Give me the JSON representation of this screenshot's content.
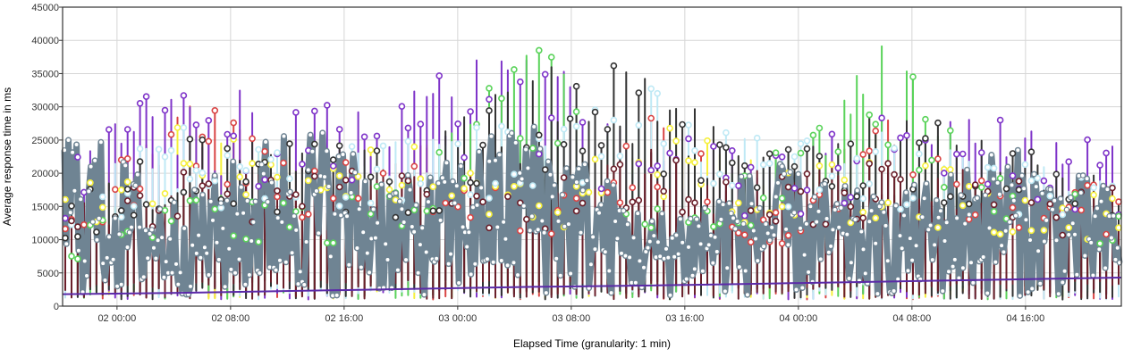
{
  "chart_data": {
    "type": "line",
    "title": "",
    "xlabel": "Elapsed Time (granularity: 1 min)",
    "ylabel": "Average response time in ms",
    "ylim": [
      0,
      45000
    ],
    "yticks": [
      0,
      5000,
      10000,
      15000,
      20000,
      25000,
      30000,
      35000,
      40000,
      45000
    ],
    "xlim": [
      "2020-12-01T20:10",
      "2020-12-04T22:45"
    ],
    "xticks": [
      "02 00:00",
      "02 08:00",
      "02 16:00",
      "03 00:00",
      "03 08:00",
      "03 16:00",
      "04 00:00",
      "04 08:00",
      "04 16:00"
    ],
    "grid": true,
    "legend": "none",
    "series": [
      {
        "color": "#6f8493",
        "values": [
          22000,
          9000,
          24000,
          13000,
          27000,
          8000,
          19000,
          12000,
          25000,
          16000
        ]
      },
      {
        "color": "#d94444",
        "values": [
          15000,
          33000,
          21000,
          26000,
          17000,
          30000,
          14000,
          29000,
          20000,
          18000
        ]
      },
      {
        "color": "#f6f03c",
        "values": [
          19000,
          28000,
          22000,
          25000,
          18000,
          29000,
          21000,
          23000,
          19000,
          17000
        ]
      },
      {
        "color": "#7f34c9",
        "values": [
          21000,
          38000,
          29000,
          35000,
          39000,
          27000,
          23000,
          29000,
          28000,
          24000
        ]
      },
      {
        "color": "#5ad35a",
        "values": [
          12000,
          20000,
          16000,
          20000,
          43000,
          17000,
          22000,
          40000,
          19000,
          16000
        ]
      },
      {
        "color": "#bfe9f5",
        "values": [
          20000,
          27000,
          24000,
          26000,
          28000,
          33000,
          25000,
          27000,
          22000,
          20000
        ]
      },
      {
        "color": "#333333",
        "values": [
          18000,
          26000,
          25000,
          23000,
          37000,
          36000,
          24000,
          30000,
          25000,
          22000
        ]
      },
      {
        "color": "#6a1f2a",
        "values": [
          15000,
          22000,
          20000,
          22000,
          20000,
          24000,
          21000,
          22000,
          20000,
          18000
        ]
      },
      {
        "color": "#5b2aa8",
        "values": [
          1800,
          2000,
          2300,
          2600,
          2900,
          3100,
          3400,
          3700,
          4000,
          4300
        ]
      }
    ]
  }
}
